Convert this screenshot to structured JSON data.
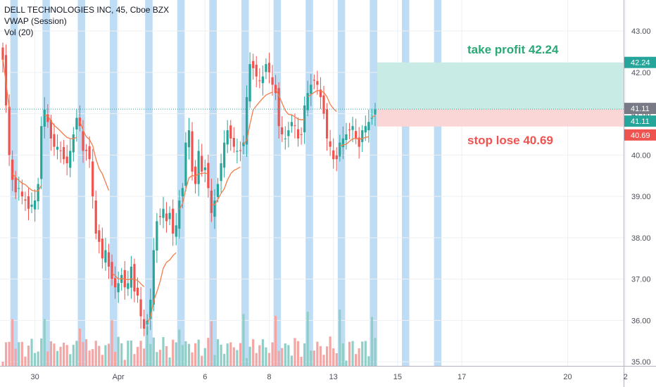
{
  "legend": {
    "symbol_line": "DELL TECHNOLOGIES INC, 45, Cboe BZX",
    "vwap": "VWAP (Session)",
    "vol": "Vol (20)"
  },
  "annotations": {
    "take_profit": "take profit 42.24",
    "stop_lose": "stop lose 40.69"
  },
  "colors": {
    "up": "#26a69a",
    "down": "#ef5350",
    "vwap": "#f57c4a",
    "vol_up": "#8fcfc7",
    "vol_down": "#f4a6a4",
    "session_band": "#bfdcf5",
    "tp_zone": "#c9ebe5",
    "sl_zone": "#fbd6d6",
    "price_tag_current": "#26a69a",
    "price_tag_tp": "#26a69a",
    "price_tag_sl": "#ef5350",
    "last_tag": "#787b86"
  },
  "chart_data": {
    "type": "candlestick",
    "title": "DELL TECHNOLOGIES INC, 45, Cboe BZX",
    "ylim": [
      34.9,
      43.75
    ],
    "y_ticks": [
      "35.00",
      "36.00",
      "37.00",
      "38.00",
      "39.00",
      "40.00",
      "41.00",
      "42.00",
      "43.00"
    ],
    "x_ticks": [
      "30",
      "Apr",
      "6",
      "8",
      "13",
      "15",
      "17",
      "20",
      "2"
    ],
    "x_tick_index": [
      10,
      36,
      63,
      83,
      103,
      123,
      143,
      176,
      194
    ],
    "price_labels": {
      "take_profit": "42.24",
      "current": "41.11",
      "last": "41.11",
      "stop_lose": "40.69"
    },
    "levels": {
      "take_profit": 42.24,
      "entry": 41.11,
      "stop_lose": 40.69
    },
    "session_starts": [
      3,
      13,
      24,
      34,
      45,
      55,
      65,
      75,
      85,
      95,
      105,
      115,
      125,
      135
    ],
    "session_ends": [
      4,
      14,
      25,
      35,
      46,
      56,
      66,
      76,
      86,
      96,
      106,
      116,
      126,
      136
    ],
    "closes": [
      42.3,
      41.2,
      40.0,
      39.4,
      39.1,
      39.2,
      39.0,
      38.9,
      38.7,
      38.8,
      38.9,
      39.3,
      40.7,
      41.1,
      40.8,
      40.4,
      40.2,
      40.2,
      40.1,
      39.9,
      39.8,
      40.1,
      40.5,
      40.9,
      40.7,
      40.1,
      40.1,
      39.9,
      39.0,
      38.1,
      37.9,
      37.5,
      37.7,
      37.3,
      37.0,
      36.8,
      36.9,
      37.1,
      36.8,
      36.9,
      37.3,
      36.7,
      36.6,
      36.1,
      35.8,
      36.0,
      36.5,
      37.7,
      38.4,
      38.5,
      38.7,
      38.4,
      38.6,
      38.1,
      38.3,
      38.9,
      39.2,
      40.3,
      40.6,
      39.6,
      39.3,
      40.1,
      39.6,
      39.7,
      39.2,
      38.6,
      38.9,
      39.3,
      39.8,
      40.3,
      40.6,
      40.4,
      40.2,
      40.1,
      40.1,
      40.3,
      41.4,
      42.2,
      42.1,
      41.9,
      41.8,
      41.9,
      42.2,
      42.0,
      41.7,
      41.5,
      40.7,
      40.5,
      40.4,
      40.6,
      40.8,
      40.7,
      40.4,
      40.5,
      41.2,
      41.5,
      41.7,
      41.8,
      41.7,
      41.4,
      41.0,
      40.4,
      40.2,
      39.9,
      39.9,
      40.3,
      40.4,
      40.5,
      40.6,
      40.7,
      40.4,
      40.2,
      40.6,
      40.7,
      40.8,
      40.9,
      41.1
    ]
  }
}
